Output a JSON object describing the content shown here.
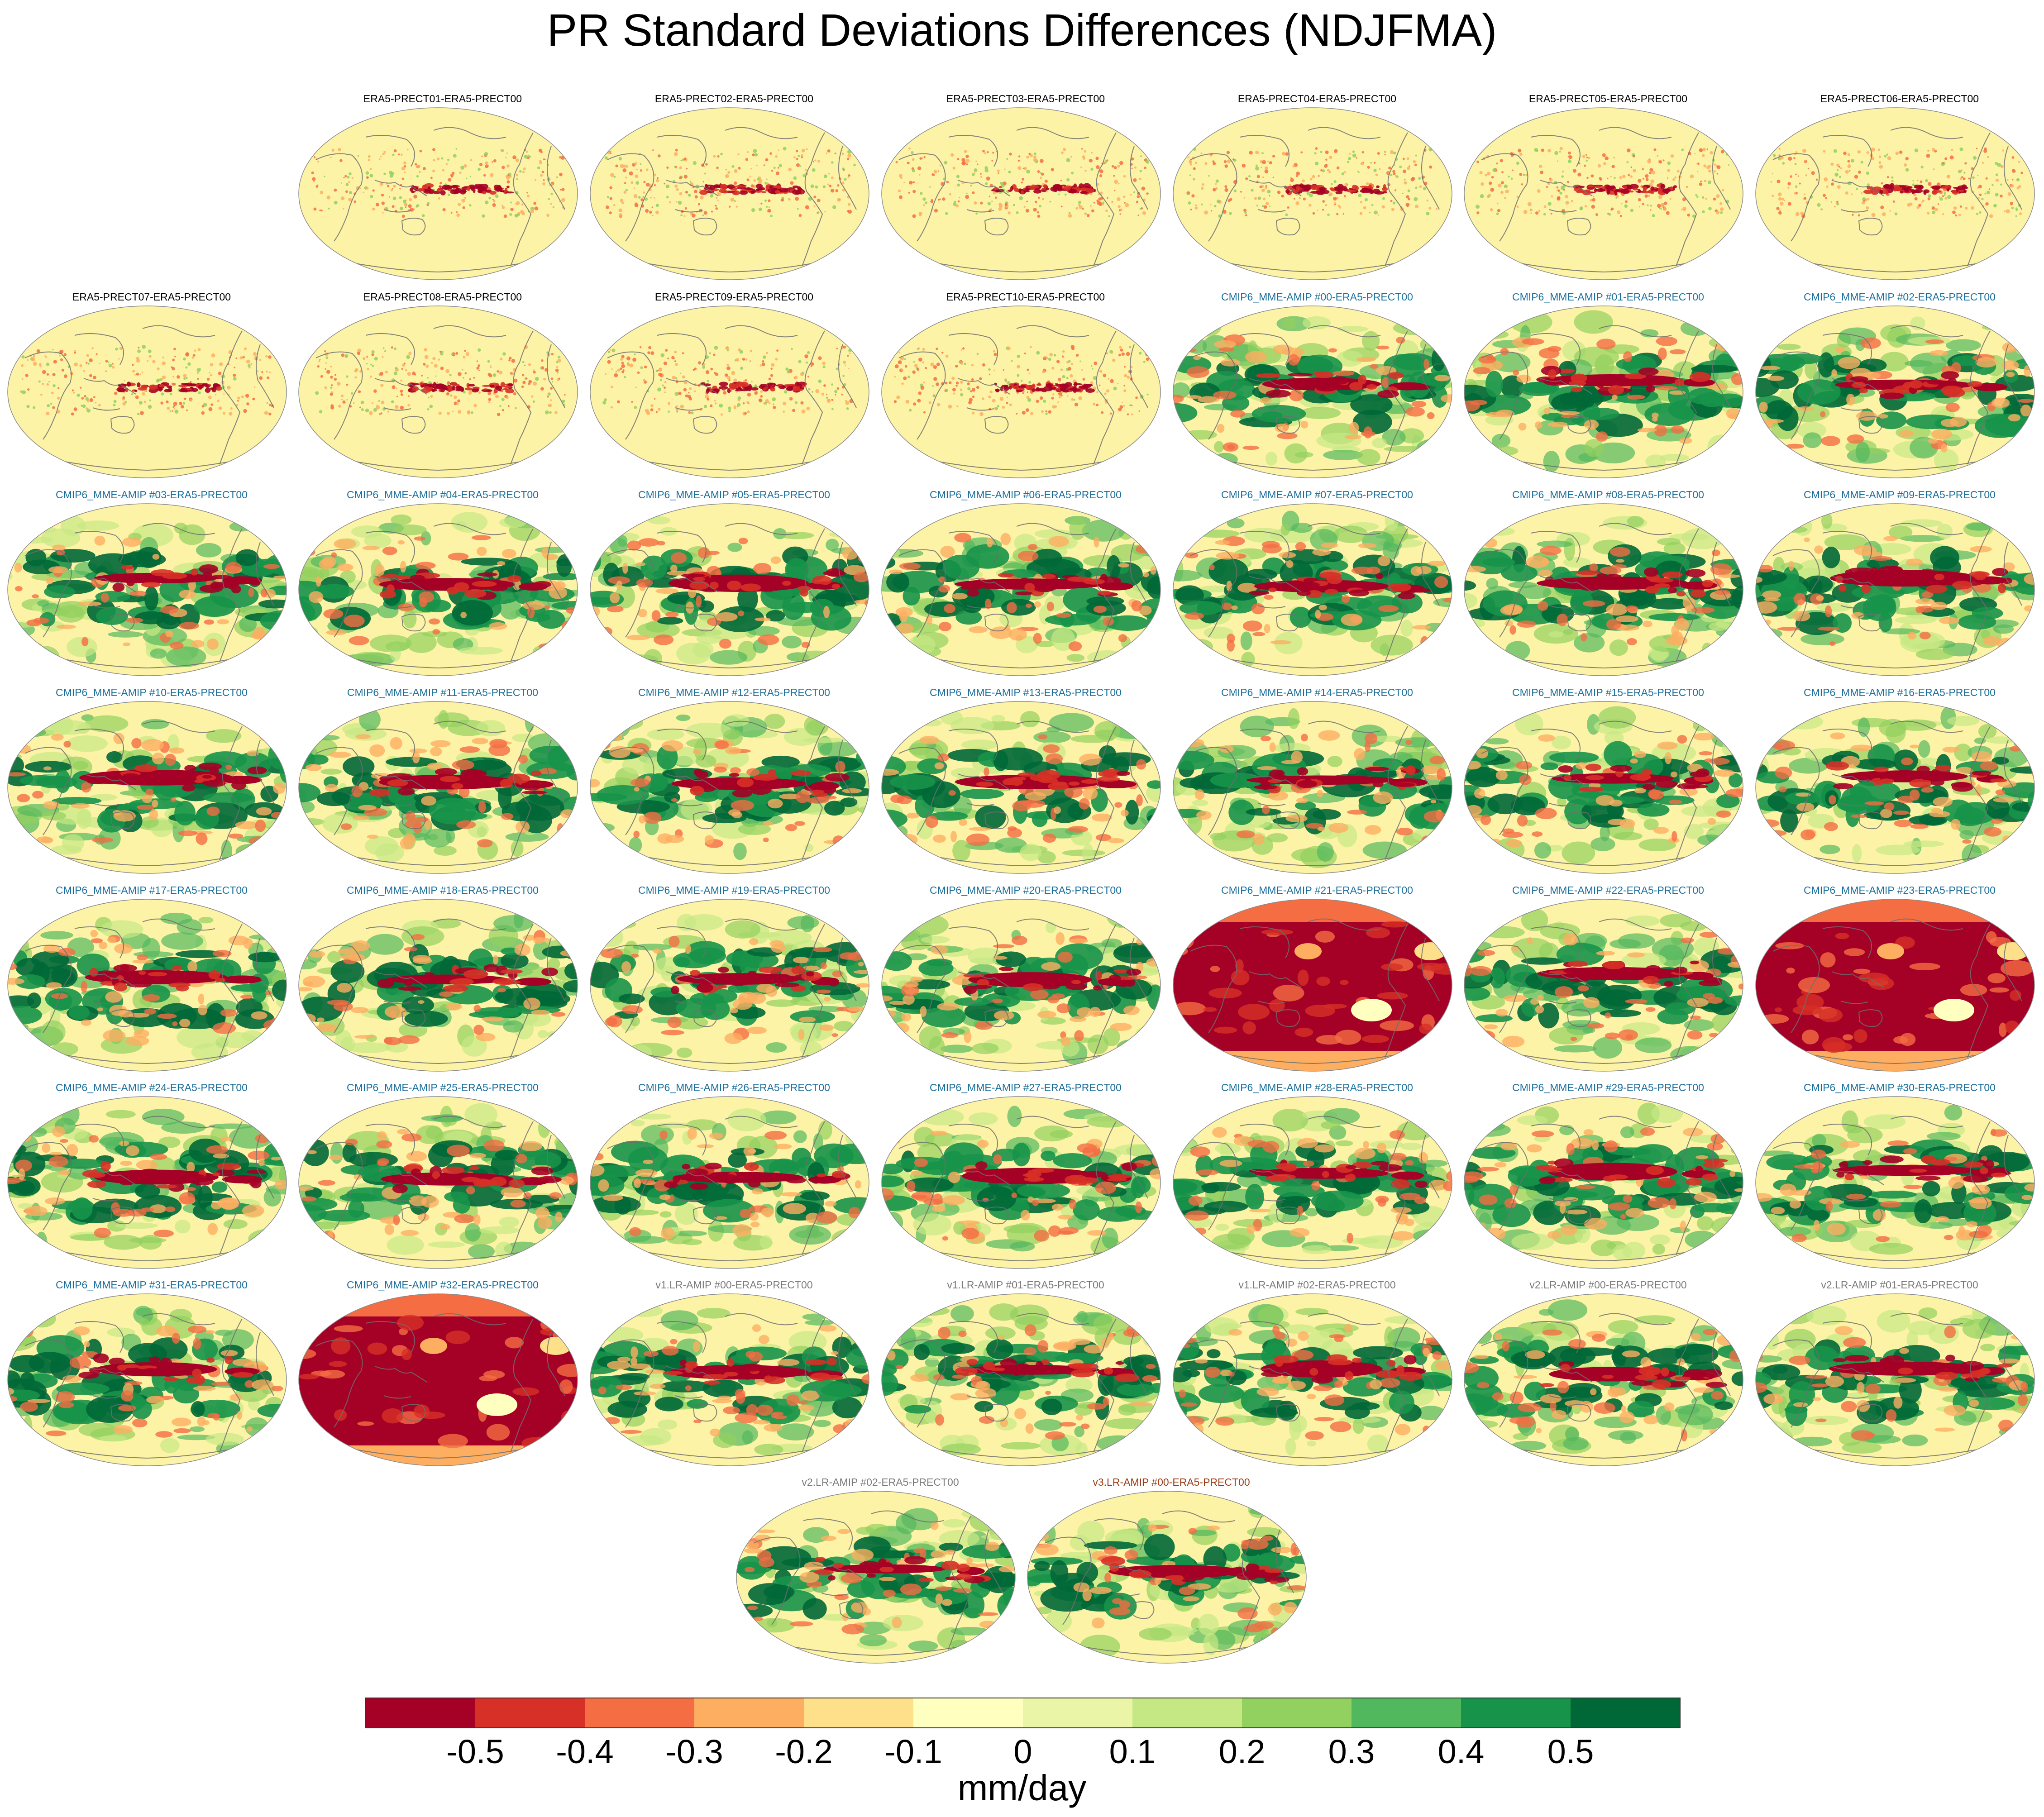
{
  "title": "PR Standard Deviations Differences (NDJFMA)",
  "chart_data": {
    "type": "heatmap",
    "description_unit": "mm/day",
    "title": "PR Standard Deviations Differences (NDJFMA)",
    "colorbar": {
      "label": "mm/day",
      "tick_labels": [
        "-0.5",
        "-0.4",
        "-0.3",
        "-0.2",
        "-0.1",
        "0",
        "0.1",
        "0.2",
        "0.3",
        "0.4",
        "0.5"
      ],
      "levels": [
        -0.5,
        -0.4,
        -0.3,
        -0.2,
        -0.1,
        0,
        0.1,
        0.2,
        0.3,
        0.4,
        0.5
      ],
      "colors": [
        "#a50026",
        "#d73027",
        "#f46d43",
        "#fdae61",
        "#fee08b",
        "#ffffbf",
        "#ebf5a8",
        "#c6e884",
        "#92d060",
        "#52b85e",
        "#17934a",
        "#006837"
      ]
    },
    "title_colors": {
      "era5": "#000000",
      "cmip6": "#1b6f9c",
      "v1": "#7a7a7a",
      "v2": "#7a7a7a",
      "v3": "#9a3a14"
    },
    "panels": [
      {
        "label": "ERA5-PRECT01-ERA5-PRECT00",
        "group": "era5",
        "pattern": "era5"
      },
      {
        "label": "ERA5-PRECT02-ERA5-PRECT00",
        "group": "era5",
        "pattern": "era5"
      },
      {
        "label": "ERA5-PRECT03-ERA5-PRECT00",
        "group": "era5",
        "pattern": "era5"
      },
      {
        "label": "ERA5-PRECT04-ERA5-PRECT00",
        "group": "era5",
        "pattern": "era5"
      },
      {
        "label": "ERA5-PRECT05-ERA5-PRECT00",
        "group": "era5",
        "pattern": "era5"
      },
      {
        "label": "ERA5-PRECT06-ERA5-PRECT00",
        "group": "era5",
        "pattern": "era5"
      },
      {
        "label": "ERA5-PRECT07-ERA5-PRECT00",
        "group": "era5",
        "pattern": "era5"
      },
      {
        "label": "ERA5-PRECT08-ERA5-PRECT00",
        "group": "era5",
        "pattern": "era5"
      },
      {
        "label": "ERA5-PRECT09-ERA5-PRECT00",
        "group": "era5",
        "pattern": "era5"
      },
      {
        "label": "ERA5-PRECT10-ERA5-PRECT00",
        "group": "era5",
        "pattern": "era5"
      },
      {
        "label": "CMIP6_MME-AMIP  #00-ERA5-PRECT00",
        "group": "cmip6",
        "pattern": "model"
      },
      {
        "label": "CMIP6_MME-AMIP  #01-ERA5-PRECT00",
        "group": "cmip6",
        "pattern": "model"
      },
      {
        "label": "CMIP6_MME-AMIP  #02-ERA5-PRECT00",
        "group": "cmip6",
        "pattern": "model"
      },
      {
        "label": "CMIP6_MME-AMIP  #03-ERA5-PRECT00",
        "group": "cmip6",
        "pattern": "model"
      },
      {
        "label": "CMIP6_MME-AMIP  #04-ERA5-PRECT00",
        "group": "cmip6",
        "pattern": "model"
      },
      {
        "label": "CMIP6_MME-AMIP  #05-ERA5-PRECT00",
        "group": "cmip6",
        "pattern": "model"
      },
      {
        "label": "CMIP6_MME-AMIP  #06-ERA5-PRECT00",
        "group": "cmip6",
        "pattern": "model"
      },
      {
        "label": "CMIP6_MME-AMIP  #07-ERA5-PRECT00",
        "group": "cmip6",
        "pattern": "model"
      },
      {
        "label": "CMIP6_MME-AMIP  #08-ERA5-PRECT00",
        "group": "cmip6",
        "pattern": "model"
      },
      {
        "label": "CMIP6_MME-AMIP  #09-ERA5-PRECT00",
        "group": "cmip6",
        "pattern": "model"
      },
      {
        "label": "CMIP6_MME-AMIP  #10-ERA5-PRECT00",
        "group": "cmip6",
        "pattern": "model"
      },
      {
        "label": "CMIP6_MME-AMIP  #11-ERA5-PRECT00",
        "group": "cmip6",
        "pattern": "model"
      },
      {
        "label": "CMIP6_MME-AMIP  #12-ERA5-PRECT00",
        "group": "cmip6",
        "pattern": "model"
      },
      {
        "label": "CMIP6_MME-AMIP  #13-ERA5-PRECT00",
        "group": "cmip6",
        "pattern": "model"
      },
      {
        "label": "CMIP6_MME-AMIP  #14-ERA5-PRECT00",
        "group": "cmip6",
        "pattern": "model"
      },
      {
        "label": "CMIP6_MME-AMIP  #15-ERA5-PRECT00",
        "group": "cmip6",
        "pattern": "model"
      },
      {
        "label": "CMIP6_MME-AMIP  #16-ERA5-PRECT00",
        "group": "cmip6",
        "pattern": "model"
      },
      {
        "label": "CMIP6_MME-AMIP  #17-ERA5-PRECT00",
        "group": "cmip6",
        "pattern": "model"
      },
      {
        "label": "CMIP6_MME-AMIP  #18-ERA5-PRECT00",
        "group": "cmip6",
        "pattern": "model"
      },
      {
        "label": "CMIP6_MME-AMIP  #19-ERA5-PRECT00",
        "group": "cmip6",
        "pattern": "model"
      },
      {
        "label": "CMIP6_MME-AMIP  #20-ERA5-PRECT00",
        "group": "cmip6",
        "pattern": "model"
      },
      {
        "label": "CMIP6_MME-AMIP  #21-ERA5-PRECT00",
        "group": "cmip6",
        "pattern": "negative"
      },
      {
        "label": "CMIP6_MME-AMIP  #22-ERA5-PRECT00",
        "group": "cmip6",
        "pattern": "model"
      },
      {
        "label": "CMIP6_MME-AMIP  #23-ERA5-PRECT00",
        "group": "cmip6",
        "pattern": "negative"
      },
      {
        "label": "CMIP6_MME-AMIP  #24-ERA5-PRECT00",
        "group": "cmip6",
        "pattern": "model"
      },
      {
        "label": "CMIP6_MME-AMIP  #25-ERA5-PRECT00",
        "group": "cmip6",
        "pattern": "model"
      },
      {
        "label": "CMIP6_MME-AMIP  #26-ERA5-PRECT00",
        "group": "cmip6",
        "pattern": "model"
      },
      {
        "label": "CMIP6_MME-AMIP  #27-ERA5-PRECT00",
        "group": "cmip6",
        "pattern": "model"
      },
      {
        "label": "CMIP6_MME-AMIP  #28-ERA5-PRECT00",
        "group": "cmip6",
        "pattern": "model"
      },
      {
        "label": "CMIP6_MME-AMIP  #29-ERA5-PRECT00",
        "group": "cmip6",
        "pattern": "model"
      },
      {
        "label": "CMIP6_MME-AMIP  #30-ERA5-PRECT00",
        "group": "cmip6",
        "pattern": "model"
      },
      {
        "label": "CMIP6_MME-AMIP  #31-ERA5-PRECT00",
        "group": "cmip6",
        "pattern": "model"
      },
      {
        "label": "CMIP6_MME-AMIP  #32-ERA5-PRECT00",
        "group": "cmip6",
        "pattern": "negative"
      },
      {
        "label": "v1.LR-AMIP  #00-ERA5-PRECT00",
        "group": "v1",
        "pattern": "model"
      },
      {
        "label": "v1.LR-AMIP  #01-ERA5-PRECT00",
        "group": "v1",
        "pattern": "model"
      },
      {
        "label": "v1.LR-AMIP  #02-ERA5-PRECT00",
        "group": "v1",
        "pattern": "model"
      },
      {
        "label": "v2.LR-AMIP  #00-ERA5-PRECT00",
        "group": "v2",
        "pattern": "model"
      },
      {
        "label": "v2.LR-AMIP  #01-ERA5-PRECT00",
        "group": "v2",
        "pattern": "model"
      },
      {
        "label": "v2.LR-AMIP  #02-ERA5-PRECT00",
        "group": "v2",
        "pattern": "model"
      },
      {
        "label": "v3.LR-AMIP  #00-ERA5-PRECT00",
        "group": "v3",
        "pattern": "model"
      }
    ]
  }
}
